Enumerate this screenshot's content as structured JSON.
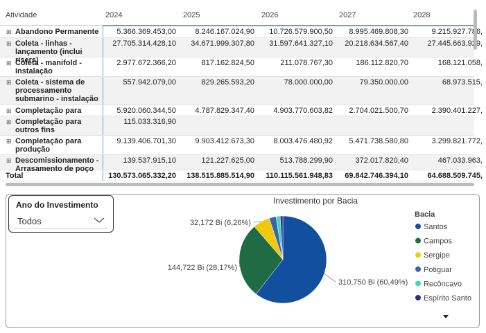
{
  "table": {
    "header": [
      "Atividade",
      "2024",
      "2025",
      "2026",
      "2027",
      "2028"
    ],
    "rows": [
      [
        "Abandono Permanente",
        "5.366.369.453,00",
        "8.246.167.024,90",
        "10.726.579.900,50",
        "8.995.469.808,30",
        "9.215.927.786,"
      ],
      [
        "Coleta - linhas - lançamento (inclui risers)",
        "27.705.314.428,10",
        "34.671.999.307,80",
        "31.597.641.327,10",
        "20.218.634.567,40",
        "27.445.663.929,"
      ],
      [
        "Coleta - manifold - instalação",
        "2.977.672.366,20",
        "817.162.824,50",
        "211.078.767,30",
        "186.112.820,70",
        "168.121.058,"
      ],
      [
        "Coleta - sistema de processamento submarino - instalação",
        "557.942.079,00",
        "829.265.593,20",
        "78.000.000,00",
        "79.350.000,00",
        "68.973.515,"
      ],
      [
        "Completação para",
        "5.920.060.344,50",
        "4.787.829.347,40",
        "4.903.770.603,82",
        "2.704.021.500,70",
        "2.390.401.227,"
      ],
      [
        "Completação para outros fins",
        "115.033.316,90",
        null,
        null,
        null,
        null
      ],
      [
        "Completação para produção",
        "9.139.406.701,30",
        "9.903.412.673,30",
        "8.003.476.480,92",
        "5.471.738.580,80",
        "3.299.821.772,"
      ],
      [
        "Descomissionamento - Arrasamento de poço",
        "139.537.915,10",
        "121.227.625,00",
        "513.788.299,90",
        "372.017.820,40",
        "467.033.963,"
      ]
    ],
    "total": [
      "Total",
      "130.573.065.332,20",
      "138.515.885.514,90",
      "110.115.561.948,83",
      "69.842.746.394,10",
      "64.688.509.745,"
    ]
  },
  "slicer": {
    "title": "Ano do Investimento",
    "value": "Todos"
  },
  "chart_data": {
    "type": "pie",
    "title": "Investimento por Bacia",
    "legend_title": "Bacia",
    "legend": "right",
    "categories": [
      "Santos",
      "Campos",
      "Sergipe",
      "Potiguar",
      "Recôncavo",
      "Espírito Santo"
    ],
    "values": [
      310.75,
      144.722,
      32.172,
      13,
      8,
      5
    ],
    "value_labels": [
      "310,750 Bi (60,49%)",
      "144,722 Bi (28,17%)",
      "32,172 Bi (6,26%)",
      null,
      null,
      null
    ],
    "colors": [
      "#12509f",
      "#1f6b44",
      "#f2c80f",
      "#3567a8",
      "#41d6c3",
      "#2a2f8c"
    ]
  }
}
